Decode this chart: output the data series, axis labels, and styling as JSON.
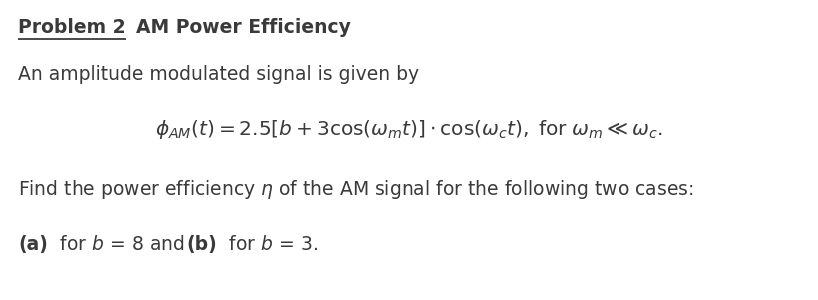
{
  "background_color": "#ffffff",
  "fig_width": 8.18,
  "fig_height": 3.0,
  "dpi": 100,
  "text_color": "#3a3a3a",
  "title_fontsize": 13.5,
  "body_fontsize": 13.5,
  "formula_fontsize": 14.5
}
